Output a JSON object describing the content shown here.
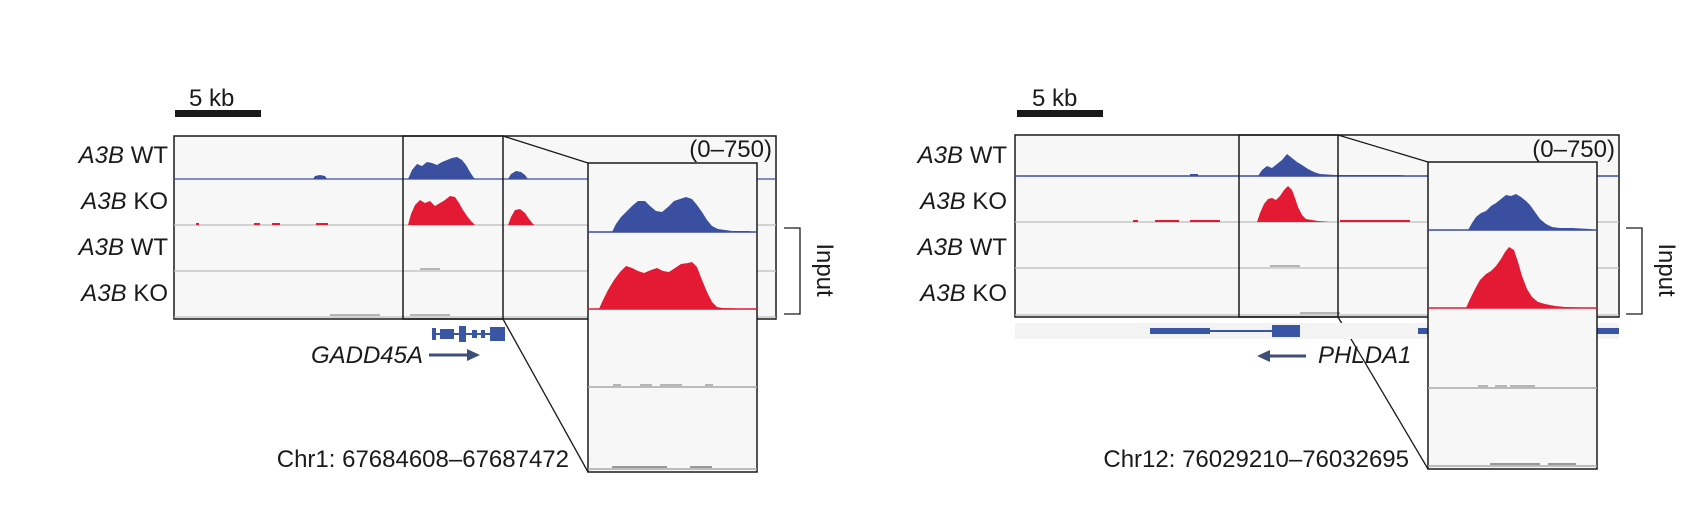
{
  "colors": {
    "chip": "#3a4f9f",
    "ko": "#e41a35",
    "input": "#a9a9a9",
    "gene": "#3a55a4",
    "frame": "#1a1a1a",
    "bg": "#f7f7f7"
  },
  "panels": [
    {
      "scalebar": "5 kb",
      "range": "(0–750)",
      "tracks": [
        {
          "gene": "A3B",
          "cond": "WT"
        },
        {
          "gene": "A3B",
          "cond": "KO"
        },
        {
          "gene": "A3B",
          "cond": "WT"
        },
        {
          "gene": "A3B",
          "cond": "KO"
        }
      ],
      "input_label": "Input",
      "gene_name": "GADD45A",
      "coords": "Chr1: 67684608–67687472"
    },
    {
      "scalebar": "5 kb",
      "range": "(0–750)",
      "tracks": [
        {
          "gene": "A3B",
          "cond": "WT"
        },
        {
          "gene": "A3B",
          "cond": "KO"
        },
        {
          "gene": "A3B",
          "cond": "WT"
        },
        {
          "gene": "A3B",
          "cond": "KO"
        }
      ],
      "input_label": "Input",
      "gene_name": "PHLDA1",
      "coords": "Chr12: 76029210–76032695"
    }
  ]
}
